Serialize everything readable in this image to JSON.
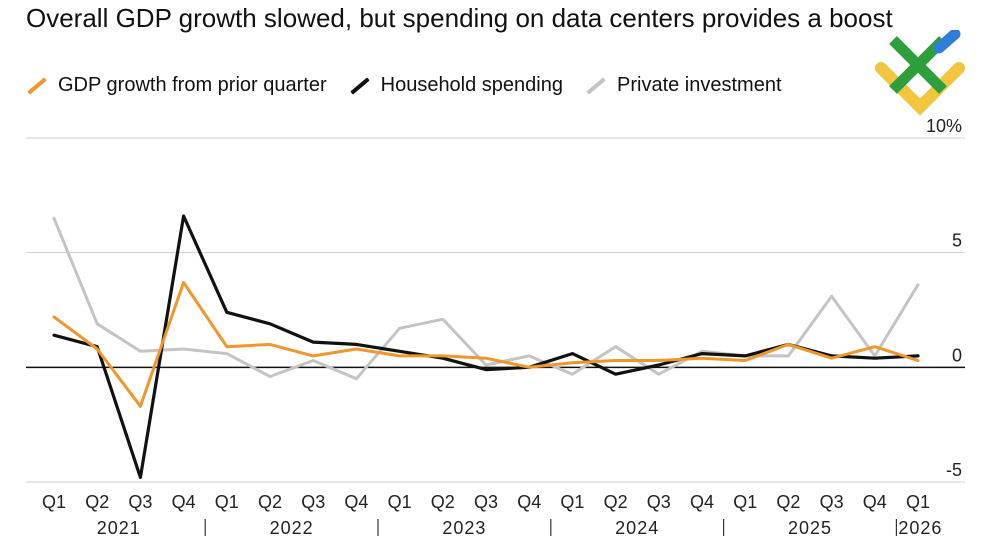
{
  "title": "Overall GDP growth slowed, but spending on data centers provides a boost",
  "legend": [
    {
      "label": "GDP growth from prior quarter",
      "color": "#f0962a"
    },
    {
      "label": "Household spending",
      "color": "#111111"
    },
    {
      "label": "Private investment",
      "color": "#c4c4c4"
    }
  ],
  "logo": {
    "icon": "brand-logo-icon",
    "colors": [
      "#f2c53d",
      "#2e9e3b",
      "#2f7fd8"
    ]
  },
  "chart_data": {
    "type": "line",
    "x": [
      "Q1",
      "Q2",
      "Q3",
      "Q4",
      "Q1",
      "Q2",
      "Q3",
      "Q4",
      "Q1",
      "Q2",
      "Q3",
      "Q4",
      "Q1",
      "Q2",
      "Q3",
      "Q4",
      "Q1",
      "Q2",
      "Q3",
      "Q4",
      "Q1"
    ],
    "year_labels": [
      "2021",
      "2022",
      "2023",
      "2024",
      "2025",
      "2026"
    ],
    "y_ticks": [
      "10%",
      "5",
      "0",
      "-5"
    ],
    "ylim": [
      -5,
      10
    ],
    "series": [
      {
        "name": "Private investment",
        "color": "#c4c4c4",
        "values": [
          6.5,
          1.9,
          0.7,
          0.8,
          0.6,
          -0.4,
          0.3,
          -0.5,
          1.7,
          2.1,
          0.1,
          0.5,
          -0.3,
          0.9,
          -0.3,
          0.7,
          0.5,
          0.5,
          3.1,
          0.5,
          3.6
        ]
      },
      {
        "name": "Household spending",
        "color": "#111111",
        "values": [
          1.4,
          0.9,
          -4.8,
          6.6,
          2.4,
          1.9,
          1.1,
          1.0,
          0.7,
          0.4,
          -0.1,
          0.0,
          0.6,
          -0.3,
          0.1,
          0.6,
          0.5,
          1.0,
          0.5,
          0.4,
          0.5
        ]
      },
      {
        "name": "GDP growth from prior quarter",
        "color": "#f0962a",
        "values": [
          2.2,
          0.8,
          -1.7,
          3.7,
          0.9,
          1.0,
          0.5,
          0.8,
          0.5,
          0.5,
          0.4,
          0.0,
          0.2,
          0.3,
          0.3,
          0.4,
          0.3,
          1.0,
          0.4,
          0.9,
          0.3
        ]
      }
    ]
  }
}
